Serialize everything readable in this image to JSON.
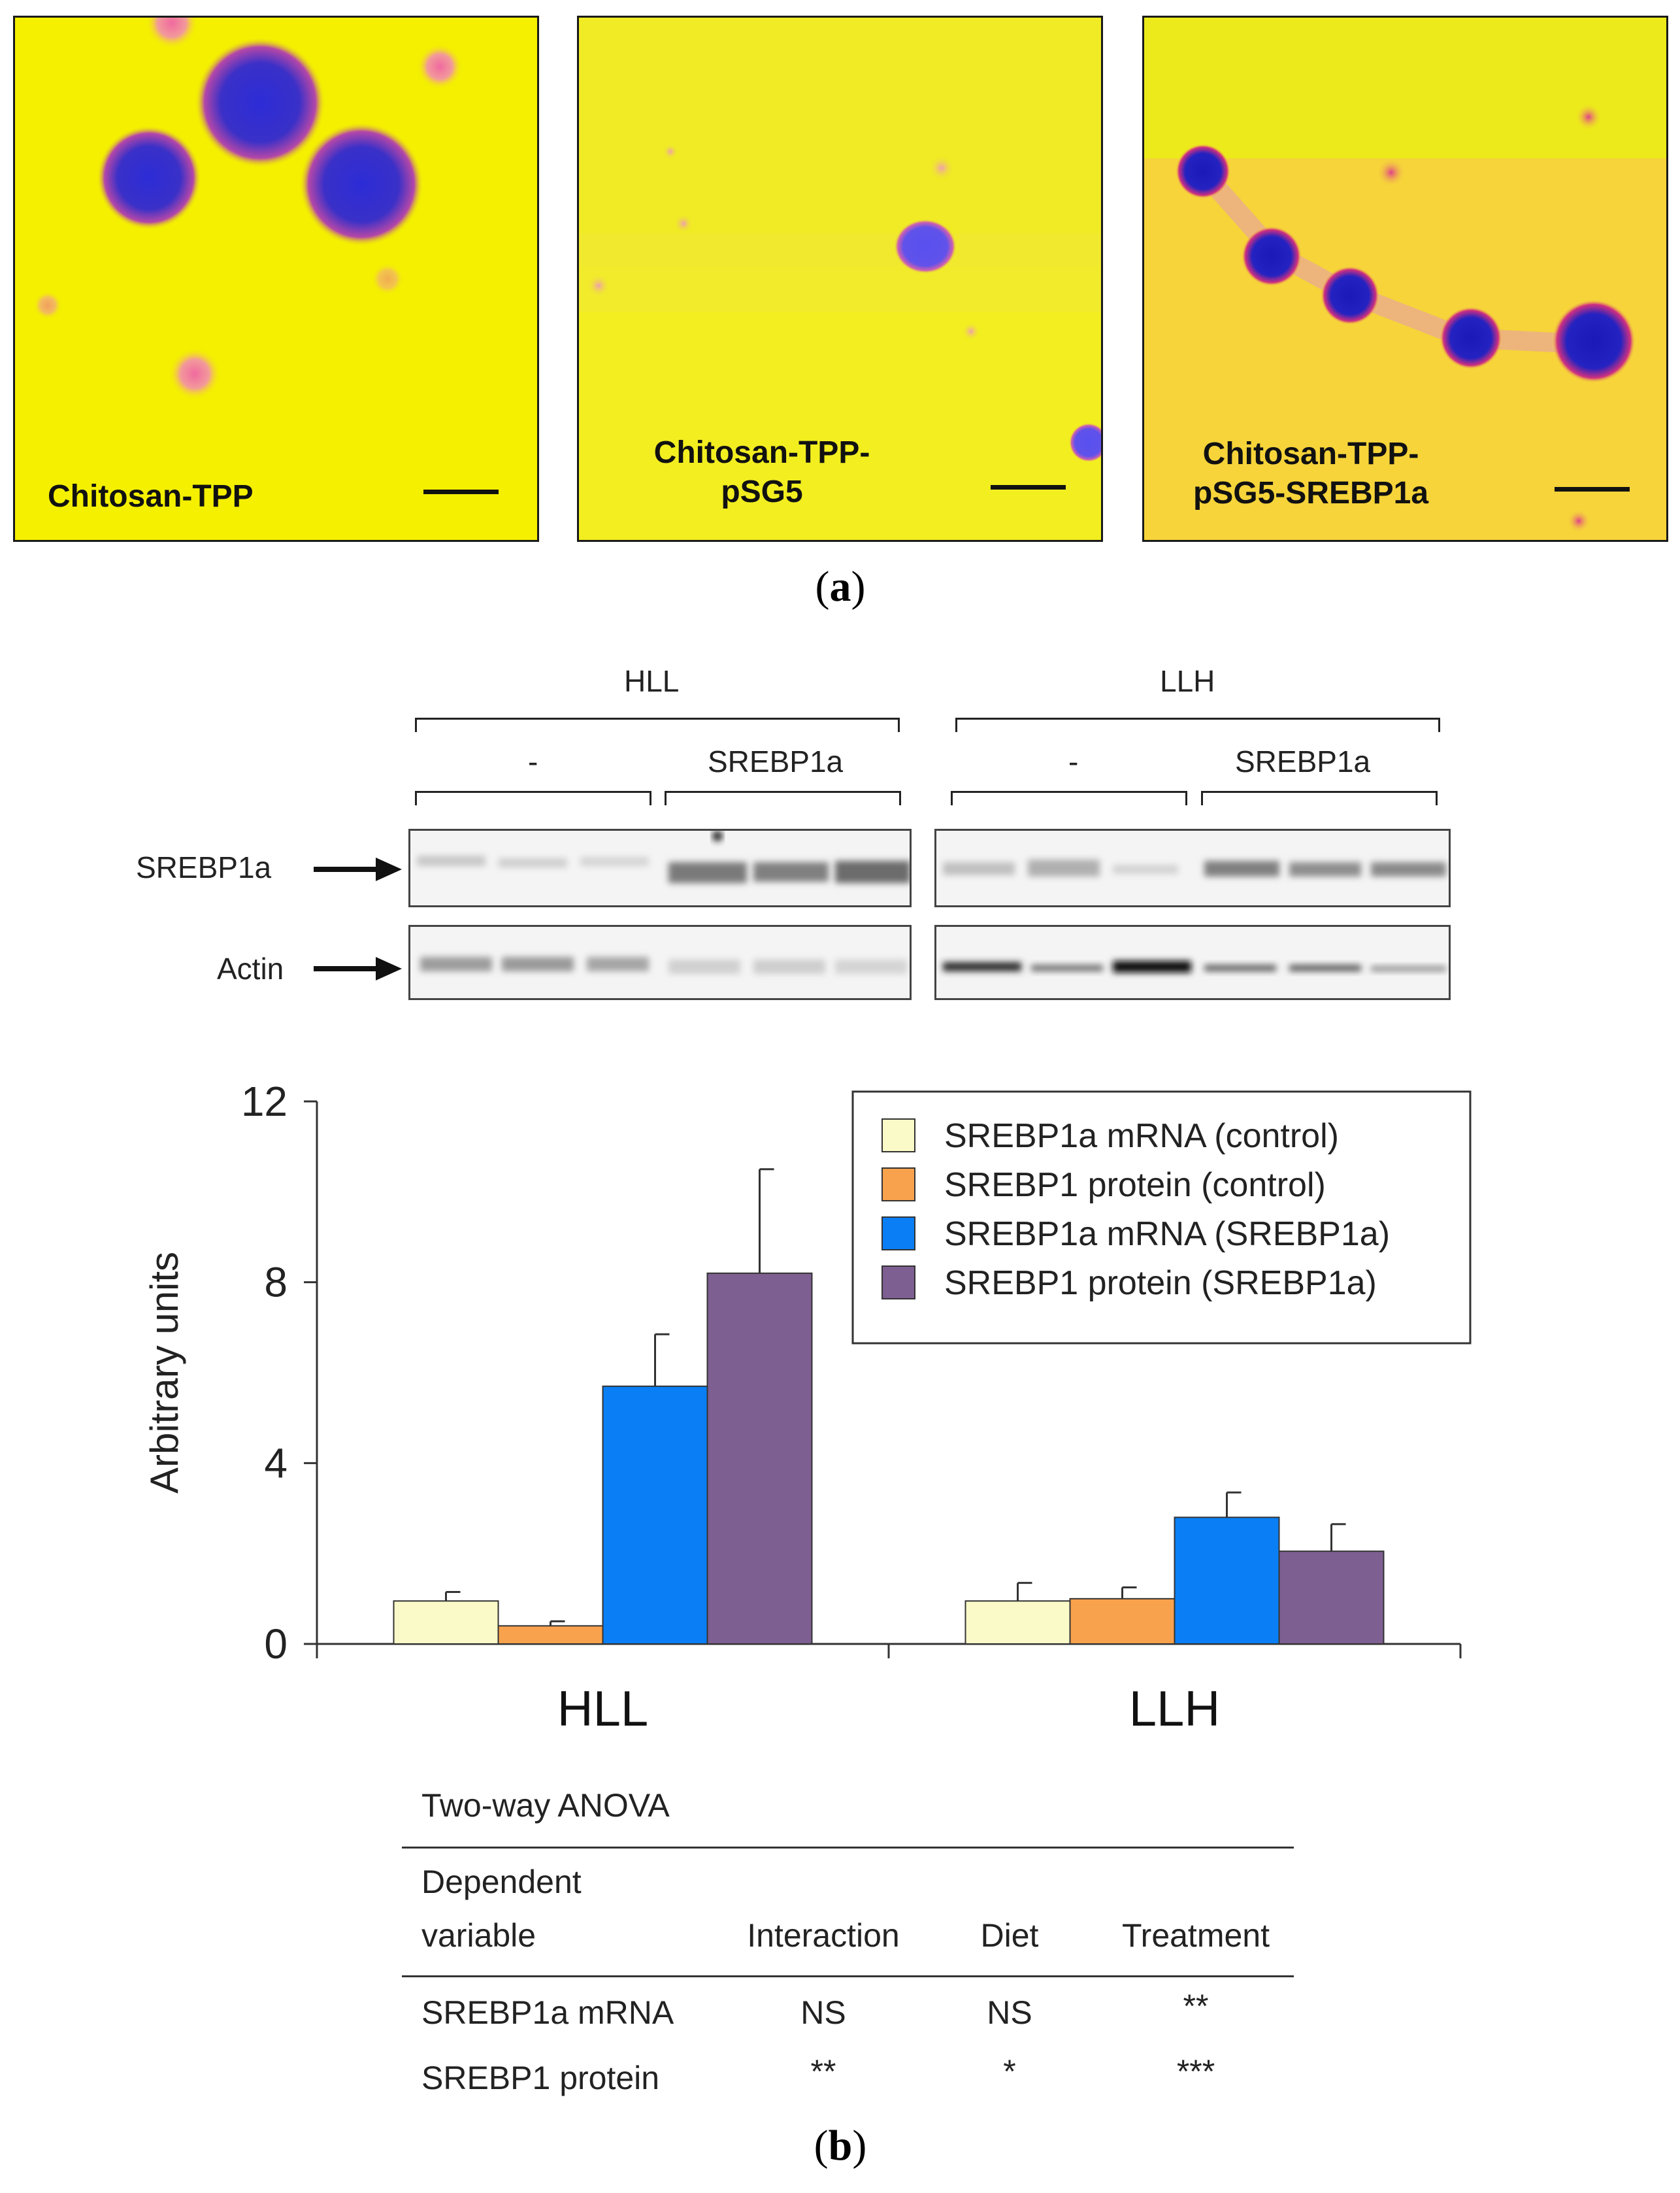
{
  "panel_a": {
    "images": [
      {
        "line1": "Chitosan-TPP",
        "line2": ""
      },
      {
        "line1": "Chitosan-TPP-",
        "line2": "pSG5"
      },
      {
        "line1": "Chitosan-TPP-",
        "line2": "pSG5-SREBP1a"
      }
    ],
    "caption_letter": "a"
  },
  "blot": {
    "group_left": "HLL",
    "group_right": "LLH",
    "sub_left_ctrl": "-",
    "sub_left_trt": "SREBP1a",
    "sub_right_ctrl": "-",
    "sub_right_trt": "SREBP1a",
    "row1_label": "SREBP1a",
    "row2_label": "Actin"
  },
  "chart_data": {
    "type": "bar",
    "categories": [
      "HLL",
      "LLH"
    ],
    "series": [
      {
        "name": "SREBP1a mRNA (control)",
        "values": [
          0.95,
          0.95
        ],
        "errors": [
          0.2,
          0.4
        ],
        "color": "#fafac8"
      },
      {
        "name": "SREBP1 protein (control)",
        "values": [
          0.4,
          1.0
        ],
        "errors": [
          0.1,
          0.25
        ],
        "color": "#f8a24e"
      },
      {
        "name": "SREBP1a mRNA (SREBP1a)",
        "values": [
          5.7,
          2.8
        ],
        "errors": [
          1.15,
          0.55
        ],
        "color": "#0a7ff5"
      },
      {
        "name": "SREBP1 protein (SREBP1a)",
        "values": [
          8.2,
          2.05
        ],
        "errors": [
          2.3,
          0.6
        ],
        "color": "#7e5f92"
      }
    ],
    "ylabel": "Arbitrary units",
    "ylim": [
      0,
      12
    ],
    "yticks": [
      "0",
      "4",
      "8",
      "12"
    ],
    "legend": "top-right"
  },
  "anova": {
    "title": "Two-way ANOVA",
    "header_dep_line1": "Dependent",
    "header_dep_line2": "variable",
    "header_interaction": "Interaction",
    "header_diet": "Diet",
    "header_treatment": "Treatment",
    "rows": [
      {
        "variable": "SREBP1a mRNA",
        "interaction": "NS",
        "diet": "NS",
        "treatment": "**"
      },
      {
        "variable": "SREBP1 protein",
        "interaction": "**",
        "diet": "*",
        "treatment": "***"
      }
    ]
  },
  "caption_b_letter": "b"
}
